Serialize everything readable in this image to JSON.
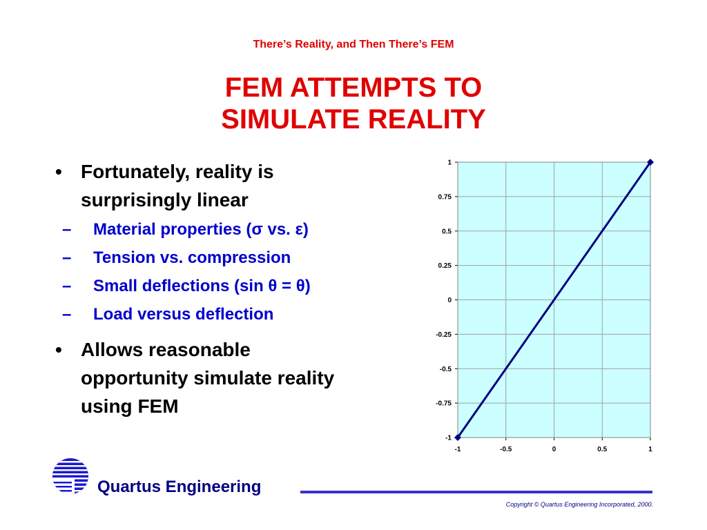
{
  "header": {
    "kicker": "There’s Reality, and Then There’s FEM",
    "title_lines": [
      "FEM ATTEMPTS TO",
      "SIMULATE REALITY"
    ]
  },
  "bullets": [
    {
      "lines": [
        "Fortunately, reality is",
        "surprisingly linear"
      ],
      "sub": [
        "Material properties (σ vs. ε)",
        "Tension vs. compression",
        "Small deflections (sin θ = θ)",
        "Load versus deflection"
      ]
    },
    {
      "lines": [
        "Allows reasonable",
        "opportunity simulate reality",
        "using FEM"
      ],
      "sub": []
    }
  ],
  "chart_data": {
    "type": "line",
    "x": [
      -1,
      1
    ],
    "series": [
      {
        "color": "#000080",
        "values": [
          -1,
          1
        ]
      }
    ],
    "xlim": [
      -1,
      1
    ],
    "ylim": [
      -1,
      1
    ],
    "xticks": [
      -1,
      -0.5,
      0,
      0.5,
      1
    ],
    "yticks": [
      -1,
      -0.75,
      -0.5,
      -0.25,
      0,
      0.25,
      0.5,
      0.75,
      1
    ],
    "grid": true,
    "background": "#ccffff"
  },
  "footer": {
    "company": "Quartus Engineering",
    "copyright": "Copyright © Quartus Engineering Incorporated, 2000."
  }
}
